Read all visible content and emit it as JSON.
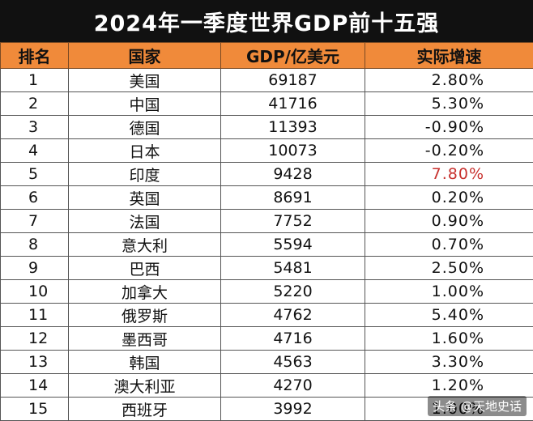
{
  "title": "2024年一季度世界GDP前十五强",
  "headers": {
    "rank": "排名",
    "country": "国家",
    "gdp": "GDP/亿美元",
    "growth": "实际增速"
  },
  "rows": [
    {
      "rank": "1",
      "country": "美国",
      "gdp": "69187",
      "growth": "2.80%"
    },
    {
      "rank": "2",
      "country": "中国",
      "gdp": "41716",
      "growth": "5.30%"
    },
    {
      "rank": "3",
      "country": "德国",
      "gdp": "11393",
      "growth": "-0.90%"
    },
    {
      "rank": "4",
      "country": "日本",
      "gdp": "10073",
      "growth": "-0.20%"
    },
    {
      "rank": "5",
      "country": "印度",
      "gdp": "9428",
      "growth": "7.80%"
    },
    {
      "rank": "6",
      "country": "英国",
      "gdp": "8691",
      "growth": "0.20%"
    },
    {
      "rank": "7",
      "country": "法国",
      "gdp": "7752",
      "growth": "0.90%"
    },
    {
      "rank": "8",
      "country": "意大利",
      "gdp": "5594",
      "growth": "0.70%"
    },
    {
      "rank": "9",
      "country": "巴西",
      "gdp": "5481",
      "growth": "2.50%"
    },
    {
      "rank": "10",
      "country": "加拿大",
      "gdp": "5220",
      "growth": "1.00%"
    },
    {
      "rank": "11",
      "country": "俄罗斯",
      "gdp": "4762",
      "growth": "5.40%"
    },
    {
      "rank": "12",
      "country": "墨西哥",
      "gdp": "4716",
      "growth": "1.60%"
    },
    {
      "rank": "13",
      "country": "韩国",
      "gdp": "4563",
      "growth": "3.30%"
    },
    {
      "rank": "14",
      "country": "澳大利亚",
      "gdp": "4270",
      "growth": "1.20%"
    },
    {
      "rank": "15",
      "country": "西班牙",
      "gdp": "3992",
      "growth": "1.00%"
    }
  ],
  "highlight_color": "#c8322f",
  "watermark": "头条 @天地史话"
}
